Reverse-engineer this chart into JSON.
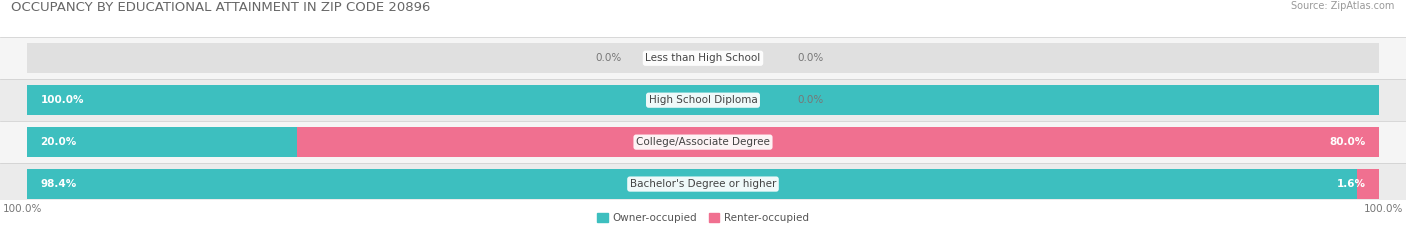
{
  "title": "OCCUPANCY BY EDUCATIONAL ATTAINMENT IN ZIP CODE 20896",
  "source": "Source: ZipAtlas.com",
  "categories": [
    "Less than High School",
    "High School Diploma",
    "College/Associate Degree",
    "Bachelor's Degree or higher"
  ],
  "owner_values": [
    0.0,
    100.0,
    20.0,
    98.4
  ],
  "renter_values": [
    0.0,
    0.0,
    80.0,
    1.6
  ],
  "owner_color": "#3DBFBF",
  "renter_color": "#F07090",
  "bar_bg_color": "#E0E0E0",
  "row_bg_even": "#F5F5F5",
  "row_bg_odd": "#EBEBEB",
  "owner_label": "Owner-occupied",
  "renter_label": "Renter-occupied",
  "fig_bg_color": "#FFFFFF",
  "title_fontsize": 9.5,
  "cat_fontsize": 7.5,
  "val_fontsize": 7.5,
  "tick_fontsize": 7.5,
  "source_fontsize": 7,
  "legend_fontsize": 7.5
}
